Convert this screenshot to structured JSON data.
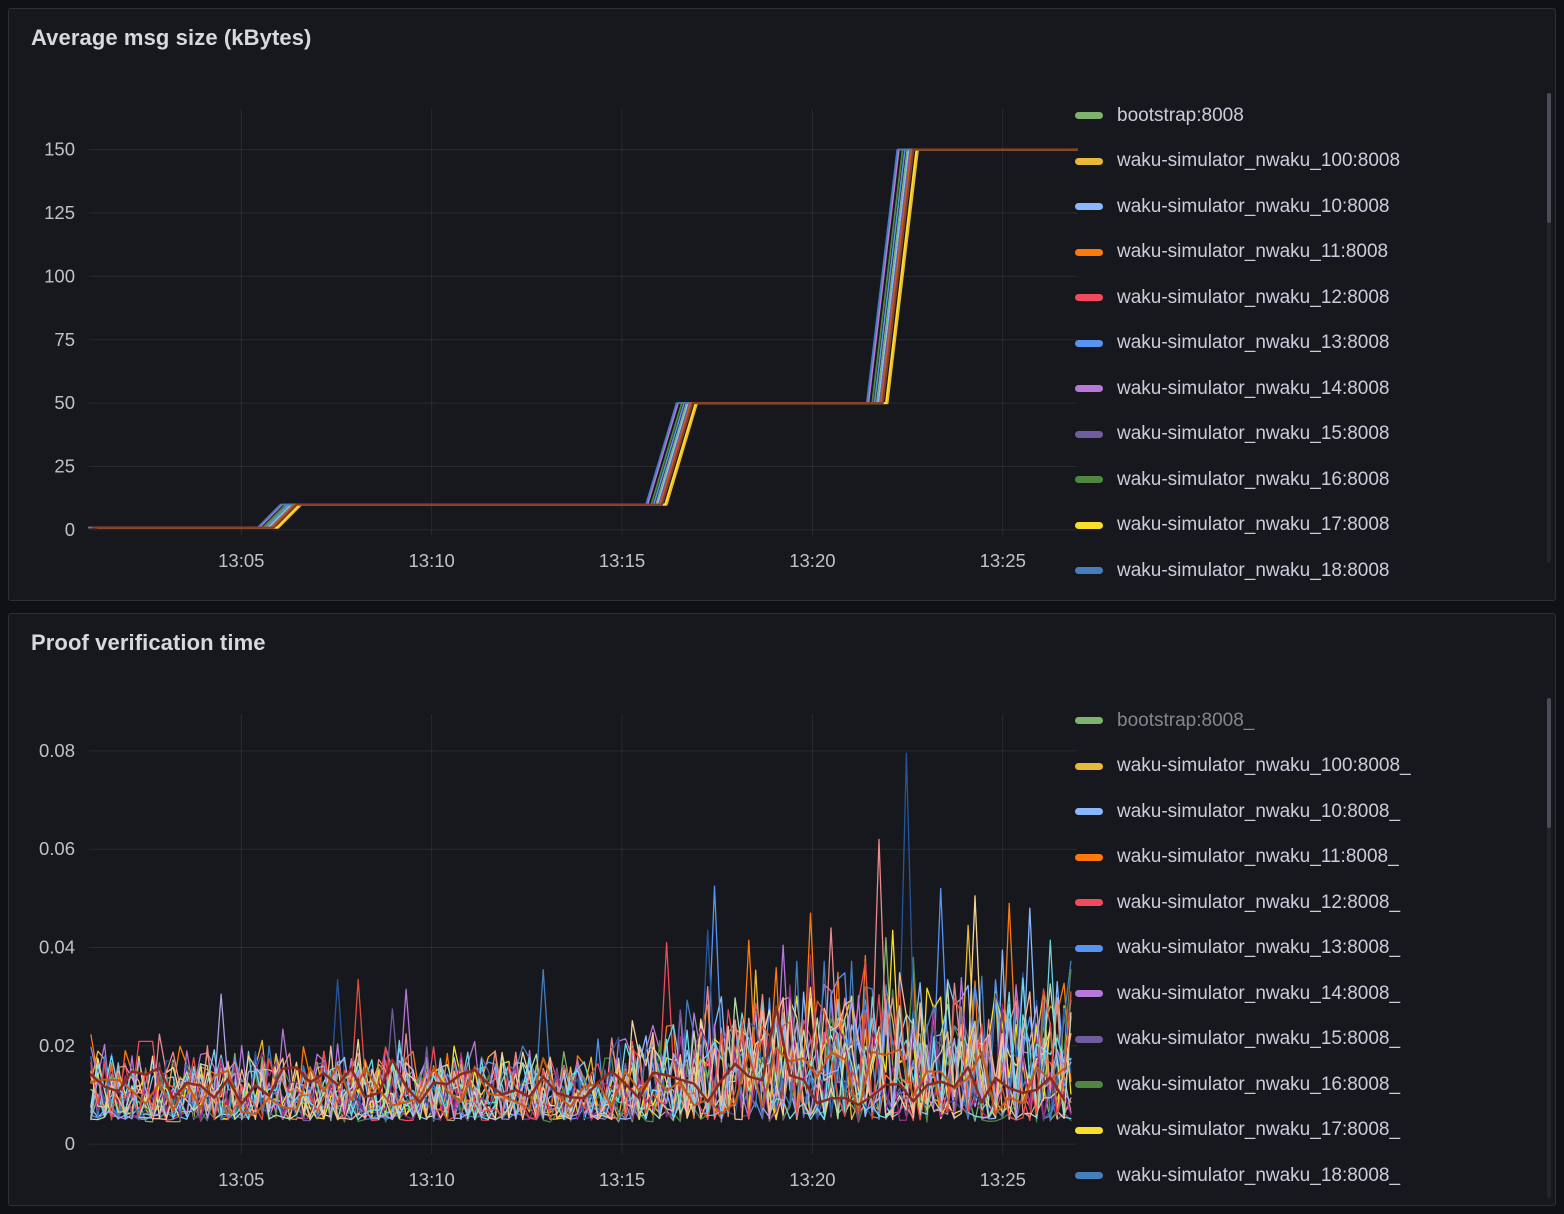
{
  "colors": {
    "page_bg": "#0F1115",
    "panel_bg": "#16181D",
    "panel_border": "#2E3036",
    "grid": "rgba(204,204,220,0.10)",
    "tick_text": "#C0C2C8",
    "title_text": "#D8D9DA",
    "legend_text": "#CCCCDC",
    "legend_dim_text": "#83868C"
  },
  "panels": [
    {
      "title": "Average msg size (kBytes)",
      "legend": {
        "items": [
          {
            "label": "bootstrap:8008",
            "color": "#7EB26D",
            "dimmed": false
          },
          {
            "label": "waku-simulator_nwaku_100:8008",
            "color": "#EAB839",
            "dimmed": false
          },
          {
            "label": "waku-simulator_nwaku_10:8008",
            "color": "#8AB8FF",
            "dimmed": false
          },
          {
            "label": "waku-simulator_nwaku_11:8008",
            "color": "#FF780A",
            "dimmed": false
          },
          {
            "label": "waku-simulator_nwaku_12:8008",
            "color": "#F2495C",
            "dimmed": false
          },
          {
            "label": "waku-simulator_nwaku_13:8008",
            "color": "#5794F2",
            "dimmed": false
          },
          {
            "label": "waku-simulator_nwaku_14:8008",
            "color": "#B877D9",
            "dimmed": false
          },
          {
            "label": "waku-simulator_nwaku_15:8008",
            "color": "#705DA0",
            "dimmed": false
          },
          {
            "label": "waku-simulator_nwaku_16:8008",
            "color": "#508642",
            "dimmed": false
          },
          {
            "label": "waku-simulator_nwaku_17:8008",
            "color": "#FADE2A",
            "dimmed": false
          },
          {
            "label": "waku-simulator_nwaku_18:8008",
            "color": "#447EBC",
            "dimmed": false
          }
        ]
      },
      "chart_data": {
        "type": "line",
        "title": "Average msg size (kBytes)",
        "xlabel": "",
        "ylabel": "",
        "grid": true,
        "legend_position": "right",
        "xlim": [
          1.0,
          26.95
        ],
        "x_ticks": [
          {
            "value": 5,
            "label": "13:05"
          },
          {
            "value": 10,
            "label": "13:10"
          },
          {
            "value": 15,
            "label": "13:15"
          },
          {
            "value": 20,
            "label": "13:20"
          },
          {
            "value": 25,
            "label": "13:25"
          }
        ],
        "ylim": [
          -2,
          166
        ],
        "y_ticks": [
          {
            "value": 0,
            "label": "0"
          },
          {
            "value": 25,
            "label": "25"
          },
          {
            "value": 50,
            "label": "50"
          },
          {
            "value": 75,
            "label": "75"
          },
          {
            "value": 100,
            "label": "100"
          },
          {
            "value": 125,
            "label": "125"
          },
          {
            "value": 150,
            "label": "150"
          }
        ],
        "step_levels_kbytes": [
          1,
          10,
          50,
          150
        ],
        "step_times": [
          "13:06",
          "13:16.5",
          "13:22"
        ],
        "base_points": [
          [
            1.0,
            0.9
          ],
          [
            5.75,
            0.9
          ],
          [
            6.35,
            10
          ],
          [
            15.95,
            10
          ],
          [
            16.75,
            50
          ],
          [
            21.75,
            50
          ],
          [
            22.55,
            150
          ],
          [
            26.95,
            150
          ]
        ],
        "series": [
          {
            "name": "bootstrap:8008",
            "color": "#7EB26D",
            "dx": -0.06,
            "width": 1.6
          },
          {
            "name": "waku-simulator_nwaku_100:8008",
            "color": "#EAB839",
            "dx": 0.22,
            "width": 2.2
          },
          {
            "name": "waku-simulator_nwaku_10:8008",
            "color": "#8AB8FF",
            "dx": -0.02,
            "width": 1.6
          },
          {
            "name": "waku-simulator_nwaku_11:8008",
            "color": "#FF780A",
            "dx": 0.04,
            "width": 1.6
          },
          {
            "name": "waku-simulator_nwaku_12:8008",
            "color": "#F2495C",
            "dx": 0.09,
            "width": 1.6
          },
          {
            "name": "waku-simulator_nwaku_13:8008",
            "color": "#5794F2",
            "dx": -0.12,
            "width": 1.6
          },
          {
            "name": "waku-simulator_nwaku_14:8008",
            "color": "#B877D9",
            "dx": -0.28,
            "width": 1.8
          },
          {
            "name": "waku-simulator_nwaku_15:8008",
            "color": "#705DA0",
            "dx": 0.02,
            "width": 1.6
          },
          {
            "name": "waku-simulator_nwaku_16:8008",
            "color": "#508642",
            "dx": -0.18,
            "width": 1.8
          },
          {
            "name": "waku-simulator_nwaku_17:8008",
            "color": "#FADE2A",
            "dx": 0.18,
            "width": 1.8
          },
          {
            "name": "waku-simulator_nwaku_18:8008",
            "color": "#447EBC",
            "dx": -0.32,
            "width": 1.8
          },
          {
            "name": "",
            "color": "#C15C17",
            "dx": 0.05,
            "width": 1.6
          },
          {
            "name": "",
            "color": "#8C3A2B",
            "dx": 0.1,
            "width": 2.0
          }
        ]
      }
    },
    {
      "title": "Proof verification time",
      "legend": {
        "items": [
          {
            "label": "bootstrap:8008_",
            "color": "#7EB26D",
            "dimmed": true
          },
          {
            "label": "waku-simulator_nwaku_100:8008_",
            "color": "#EAB839",
            "dimmed": false
          },
          {
            "label": "waku-simulator_nwaku_10:8008_",
            "color": "#8AB8FF",
            "dimmed": false
          },
          {
            "label": "waku-simulator_nwaku_11:8008_",
            "color": "#FF780A",
            "dimmed": false
          },
          {
            "label": "waku-simulator_nwaku_12:8008_",
            "color": "#F2495C",
            "dimmed": false
          },
          {
            "label": "waku-simulator_nwaku_13:8008_",
            "color": "#5794F2",
            "dimmed": false
          },
          {
            "label": "waku-simulator_nwaku_14:8008_",
            "color": "#B877D9",
            "dimmed": false
          },
          {
            "label": "waku-simulator_nwaku_15:8008_",
            "color": "#705DA0",
            "dimmed": false
          },
          {
            "label": "waku-simulator_nwaku_16:8008_",
            "color": "#508642",
            "dimmed": false
          },
          {
            "label": "waku-simulator_nwaku_17:8008_",
            "color": "#FADE2A",
            "dimmed": false
          },
          {
            "label": "waku-simulator_nwaku_18:8008_",
            "color": "#447EBC",
            "dimmed": false
          }
        ]
      },
      "chart_data": {
        "type": "line",
        "title": "Proof verification time",
        "xlabel": "",
        "ylabel": "",
        "grid": true,
        "legend_position": "right",
        "xlim": [
          1.0,
          26.95
        ],
        "x_ticks": [
          {
            "value": 5,
            "label": "13:05"
          },
          {
            "value": 10,
            "label": "13:10"
          },
          {
            "value": 15,
            "label": "13:15"
          },
          {
            "value": 20,
            "label": "13:20"
          },
          {
            "value": 25,
            "label": "13:25"
          }
        ],
        "ylim": [
          -0.002,
          0.0875
        ],
        "y_ticks": [
          {
            "value": 0,
            "label": "0"
          },
          {
            "value": 0.02,
            "label": "0.02"
          },
          {
            "value": 0.04,
            "label": "0.04"
          },
          {
            "value": 0.06,
            "label": "0.06"
          },
          {
            "value": 0.08,
            "label": "0.08"
          }
        ],
        "sample_step": 0.18,
        "baseline_description": "dense noise 0.004-0.022 s before 13:15 widening to 0.005-0.05 s after; thick maroon mean line near 0.008-0.018 s",
        "noise_ramp": {
          "start_min": 14,
          "length_min": 5
        },
        "series": [
          {
            "name": "bootstrap:8008_",
            "color": "#7EB26D",
            "seed": 101,
            "base": 0.0045,
            "amp": [
              0.015,
              0.027
            ],
            "spikes": [
              [
                21.95,
                0.042
              ]
            ]
          },
          {
            "name": "waku-simulator_nwaku_100:8008_",
            "color": "#EAB839",
            "seed": 102,
            "base": 0.005,
            "amp": [
              0.014,
              0.028
            ],
            "spikes": [
              [
                24.0,
                0.0445
              ]
            ]
          },
          {
            "name": "waku-simulator_nwaku_10:8008_",
            "color": "#8AB8FF",
            "seed": 103,
            "base": 0.005,
            "amp": [
              0.013,
              0.03
            ],
            "spikes": [
              [
                25.65,
                0.048
              ]
            ]
          },
          {
            "name": "waku-simulator_nwaku_11:8008_",
            "color": "#FF780A",
            "seed": 104,
            "base": 0.005,
            "amp": [
              0.015,
              0.032
            ],
            "spikes": [
              [
                20.0,
                0.047
              ],
              [
                25.2,
                0.049
              ],
              [
                18.35,
                0.0415
              ]
            ]
          },
          {
            "name": "waku-simulator_nwaku_12:8008_",
            "color": "#F2495C",
            "seed": 105,
            "base": 0.0048,
            "amp": [
              0.014,
              0.028
            ],
            "spikes": [
              [
                16.1,
                0.041
              ]
            ]
          },
          {
            "name": "waku-simulator_nwaku_13:8008_",
            "color": "#5794F2",
            "seed": 106,
            "base": 0.005,
            "amp": [
              0.013,
              0.03
            ],
            "spikes": [
              [
                23.35,
                0.052
              ],
              [
                17.45,
                0.0525
              ]
            ]
          },
          {
            "name": "waku-simulator_nwaku_14:8008_",
            "color": "#B877D9",
            "seed": 107,
            "base": 0.005,
            "amp": [
              0.016,
              0.03
            ],
            "spikes": [
              [
                19.3,
                0.0405
              ],
              [
                9.3,
                0.0315
              ]
            ]
          },
          {
            "name": "waku-simulator_nwaku_15:8008_",
            "color": "#705DA0",
            "seed": 108,
            "base": 0.0048,
            "amp": [
              0.013,
              0.026
            ],
            "spikes": [
              [
                8.9,
                0.0275
              ]
            ]
          },
          {
            "name": "waku-simulator_nwaku_16:8008_",
            "color": "#508642",
            "seed": 109,
            "base": 0.0045,
            "amp": [
              0.012,
              0.027
            ],
            "spikes": [
              [
                22.6,
                0.038
              ]
            ]
          },
          {
            "name": "waku-simulator_nwaku_17:8008_",
            "color": "#FADE2A",
            "seed": 110,
            "base": 0.005,
            "amp": [
              0.013,
              0.028
            ],
            "spikes": [
              [
                22.15,
                0.0435
              ]
            ]
          },
          {
            "name": "waku-simulator_nwaku_18:8008_",
            "color": "#447EBC",
            "seed": 111,
            "base": 0.005,
            "amp": [
              0.013,
              0.028
            ],
            "spikes": [
              [
                13.0,
                0.0355
              ]
            ]
          },
          {
            "name": "",
            "color": "#6ED0E0",
            "seed": 112,
            "base": 0.005,
            "amp": [
              0.014,
              0.026
            ],
            "spikes": [
              [
                26.2,
                0.0415
              ]
            ]
          },
          {
            "name": "",
            "color": "#EA8A8A",
            "seed": 113,
            "base": 0.0052,
            "amp": [
              0.015,
              0.028
            ],
            "spikes": [
              [
                21.75,
                0.062
              ],
              [
                20.55,
                0.044
              ]
            ]
          },
          {
            "name": "",
            "color": "#27559D",
            "seed": 114,
            "base": 0.005,
            "amp": [
              0.012,
              0.026
            ],
            "spikes": [
              [
                22.55,
                0.0795
              ],
              [
                17.2,
                0.0435
              ],
              [
                7.6,
                0.0335
              ]
            ]
          },
          {
            "name": "",
            "color": "#F4D598",
            "seed": 115,
            "base": 0.0052,
            "amp": [
              0.014,
              0.027
            ],
            "spikes": [
              [
                24.35,
                0.0505
              ]
            ]
          },
          {
            "name": "",
            "color": "#962D82",
            "seed": 116,
            "base": 0.0048,
            "amp": [
              0.012,
              0.024
            ],
            "spikes": [
              [
                19.95,
                0.0385
              ]
            ]
          },
          {
            "name": "",
            "color": "#70DBED",
            "seed": 117,
            "base": 0.005,
            "amp": [
              0.013,
              0.025
            ],
            "spikes": []
          },
          {
            "name": "",
            "color": "#B7DBAB",
            "seed": 118,
            "base": 0.005,
            "amp": [
              0.012,
              0.024
            ],
            "spikes": []
          },
          {
            "name": "",
            "color": "#F9BA8F",
            "seed": 119,
            "base": 0.005,
            "amp": [
              0.013,
              0.026
            ],
            "spikes": []
          },
          {
            "name": "",
            "color": "#E24D42",
            "seed": 120,
            "base": 0.0048,
            "amp": [
              0.013,
              0.027
            ],
            "spikes": [
              [
                8.05,
                0.0335
              ]
            ]
          },
          {
            "name": "",
            "color": "#AEA2E0",
            "seed": 121,
            "base": 0.005,
            "amp": [
              0.013,
              0.025
            ],
            "spikes": [
              [
                4.45,
                0.0305
              ]
            ]
          },
          {
            "name": "",
            "color": "#C15C17",
            "seed": 122,
            "base": 0.006,
            "amp": [
              0.01,
              0.014
            ],
            "width": 2.0,
            "pow": 1.2,
            "dt_mult": 2,
            "spikes": []
          },
          {
            "name": "",
            "color": "#8B2A1F",
            "seed": 123,
            "base": 0.008,
            "amp": [
              0.008,
              0.01
            ],
            "width": 2.5,
            "pow": 1.1,
            "dt_mult": 2,
            "spikes": [
              [
                19.0,
                0.028
              ]
            ]
          }
        ]
      }
    }
  ]
}
